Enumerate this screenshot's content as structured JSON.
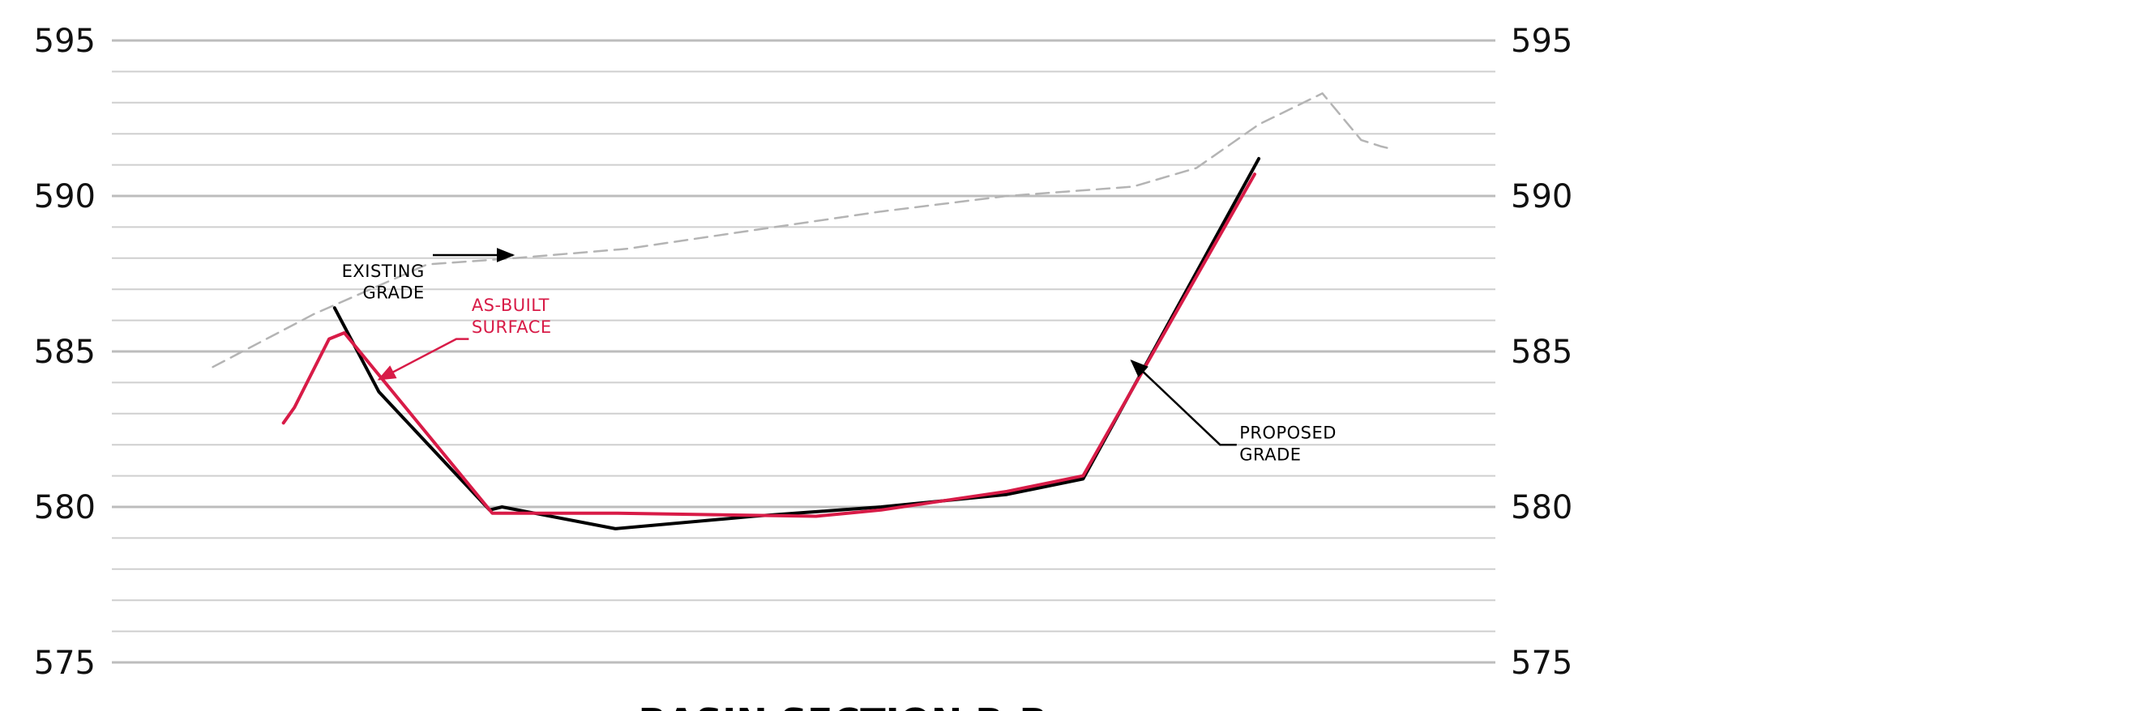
{
  "chart_data": {
    "type": "line",
    "title": "BASIN SECTION B-B",
    "ylim": [
      575,
      595
    ],
    "xlim": [
      0,
      100
    ],
    "y_ticks": [
      595,
      590,
      585,
      580,
      575
    ],
    "y_tick_labels": [
      "595",
      "590",
      "585",
      "580",
      "575"
    ],
    "minor_grid_step": 1,
    "grid": true,
    "right_axis_labels": true,
    "series": [
      {
        "key": "existing",
        "color": "#b4b4b4",
        "style": "dashed",
        "x": [
          7.3,
          14.6,
          22.8,
          29.1,
          37.2,
          46.4,
          55.6,
          64.7,
          73.8,
          78.4,
          82.9,
          87.5,
          90.3,
          91.7,
          92.6
        ],
        "y": [
          584.5,
          586.2,
          587.8,
          588.0,
          588.3,
          588.9,
          589.5,
          590.0,
          590.3,
          590.9,
          592.3,
          593.3,
          591.8,
          591.6,
          591.5
        ]
      },
      {
        "key": "proposed",
        "color": "#000000",
        "style": "solid",
        "x": [
          16.1,
          19.3,
          27.3,
          28.2,
          36.4,
          46.4,
          55.6,
          64.7,
          70.2,
          82.9
        ],
        "y": [
          586.4,
          583.7,
          579.9,
          580.0,
          579.3,
          579.7,
          580.0,
          580.4,
          580.9,
          591.2
        ]
      },
      {
        "key": "as-built",
        "color": "#d81b47",
        "style": "solid",
        "x": [
          12.4,
          13.2,
          15.7,
          16.8,
          27.5,
          36.4,
          50.9,
          55.6,
          64.7,
          70.2,
          82.6
        ],
        "y": [
          582.7,
          583.2,
          585.4,
          585.6,
          579.8,
          579.8,
          579.7,
          579.9,
          580.5,
          581.0,
          590.7
        ]
      }
    ],
    "annotations": [
      {
        "key": "existing",
        "lines": [
          "EXISTING",
          "GRADE"
        ],
        "color": "#000000",
        "align": "end",
        "label_x": 22.6,
        "label_y1": 587.4,
        "label_y2": 586.7,
        "leader": [
          [
            23.2,
            588.1
          ],
          [
            24.5,
            588.1
          ],
          [
            29.0,
            588.1
          ]
        ]
      },
      {
        "key": "asbuilt",
        "lines": [
          "AS-BUILT",
          "SURFACE"
        ],
        "color": "#d81b47",
        "align": "start",
        "label_x": 26.0,
        "label_y1": 586.3,
        "label_y2": 585.6,
        "leader": [
          [
            25.8,
            585.4
          ],
          [
            24.9,
            585.4
          ],
          [
            19.3,
            584.1
          ]
        ]
      },
      {
        "key": "proposed",
        "lines": [
          "PROPOSED",
          "GRADE"
        ],
        "color": "#000000",
        "align": "start",
        "label_x": 81.5,
        "label_y1": 582.2,
        "label_y2": 581.5,
        "leader": [
          [
            81.3,
            582.0
          ],
          [
            80.1,
            582.0
          ],
          [
            73.7,
            584.7
          ]
        ]
      }
    ]
  }
}
